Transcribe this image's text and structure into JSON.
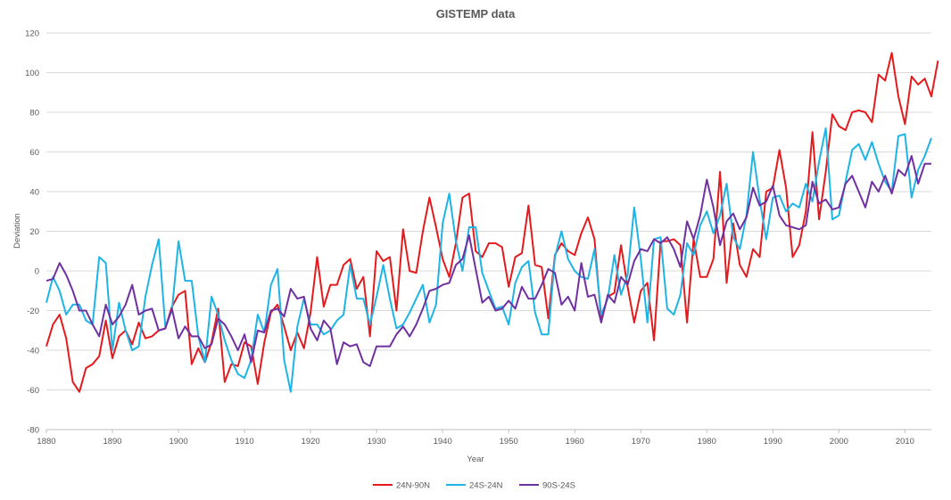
{
  "chart_data": {
    "type": "line",
    "title": "GISTEMP data",
    "xlabel": "Year",
    "ylabel": "Deviation",
    "xlim": [
      1880,
      2014
    ],
    "ylim": [
      -80,
      120
    ],
    "x_ticks": [
      1880,
      1890,
      1900,
      1910,
      1920,
      1930,
      1940,
      1950,
      1960,
      1970,
      1980,
      1990,
      2000,
      2010
    ],
    "y_ticks": [
      -80,
      -60,
      -40,
      -20,
      0,
      20,
      40,
      60,
      80,
      100,
      120
    ],
    "grid": true,
    "legend_position": "bottom",
    "x_start": 1880,
    "series": [
      {
        "name": "24N-90N",
        "color": "#e41a1c",
        "values": [
          -38,
          -27,
          -22,
          -34,
          -56,
          -61,
          -49,
          -47,
          -43,
          -25,
          -44,
          -33,
          -30,
          -37,
          -26,
          -34,
          -33,
          -30,
          -29,
          -18,
          -12,
          -10,
          -47,
          -39,
          -46,
          -36,
          -19,
          -56,
          -47,
          -48,
          -36,
          -38,
          -57,
          -36,
          -21,
          -17,
          -28,
          -40,
          -31,
          -39,
          -21,
          7,
          -18,
          -7,
          -7,
          3,
          6,
          -9,
          -3,
          -33,
          10,
          5,
          7,
          -20,
          21,
          0,
          -1,
          20,
          37,
          22,
          6,
          -3,
          14,
          37,
          39,
          10,
          7,
          14,
          14,
          12,
          -8,
          7,
          9,
          33,
          3,
          2,
          -24,
          8,
          14,
          10,
          8,
          19,
          27,
          16,
          -25,
          -13,
          -11,
          13,
          -8,
          -26,
          -10,
          -6,
          -35,
          15,
          15,
          16,
          13,
          -26,
          16,
          -3,
          -3,
          6,
          50,
          -6,
          24,
          3,
          -3,
          11,
          7,
          40,
          42,
          61,
          42,
          7,
          13,
          30,
          70,
          26,
          50,
          79,
          73,
          71,
          80,
          81,
          80,
          75,
          99,
          96,
          110,
          88,
          74,
          98,
          94,
          97,
          88,
          106
        ]
      },
      {
        "name": "24S-24N",
        "color": "#1eb4e6",
        "values": [
          -16,
          -3,
          -10,
          -22,
          -17,
          -17,
          -25,
          -27,
          7,
          4,
          -40,
          -16,
          -30,
          -40,
          -38,
          -13,
          3,
          16,
          -28,
          -20,
          15,
          -5,
          -5,
          -33,
          -46,
          -13,
          -22,
          -35,
          -45,
          -52,
          -54,
          -45,
          -22,
          -31,
          -7,
          1,
          -45,
          -61,
          -28,
          -14,
          -27,
          -27,
          -32,
          -30,
          -25,
          -22,
          3,
          -14,
          -14,
          -27,
          -13,
          3,
          -14,
          -29,
          -27,
          -21,
          -14,
          -7,
          -26,
          -17,
          24,
          39,
          15,
          0,
          22,
          22,
          -1,
          -10,
          -19,
          -18,
          -27,
          -6,
          2,
          5,
          -21,
          -32,
          -32,
          7,
          20,
          6,
          0,
          -3,
          -4,
          11,
          -22,
          -14,
          8,
          -12,
          -2,
          32,
          6,
          -26,
          16,
          17,
          -19,
          -22,
          -12,
          14,
          8,
          23,
          30,
          19,
          28,
          44,
          17,
          11,
          28,
          60,
          36,
          16,
          37,
          38,
          30,
          34,
          32,
          44,
          35,
          55,
          72,
          26,
          28,
          45,
          61,
          64,
          56,
          65,
          54,
          45,
          40,
          68,
          69,
          37,
          51,
          58,
          67
        ]
      },
      {
        "name": "90S-24S",
        "color": "#7030a0",
        "values": [
          -5,
          -4,
          4,
          -2,
          -10,
          -20,
          -20,
          -27,
          -33,
          -17,
          -27,
          -23,
          -17,
          -7,
          -22,
          -20,
          -19,
          -30,
          -29,
          -19,
          -34,
          -28,
          -33,
          -33,
          -39,
          -37,
          -24,
          -27,
          -33,
          -40,
          -32,
          -46,
          -30,
          -31,
          -20,
          -19,
          -23,
          -9,
          -14,
          -13,
          -29,
          -35,
          -25,
          -29,
          -47,
          -36,
          -38,
          -37,
          -46,
          -48,
          -38,
          -38,
          -38,
          -32,
          -28,
          -33,
          -27,
          -19,
          -10,
          -9,
          -7,
          -6,
          3,
          6,
          18,
          1,
          -16,
          -13,
          -20,
          -19,
          -15,
          -19,
          -8,
          -14,
          -14,
          -7,
          1,
          -1,
          -17,
          -13,
          -20,
          4,
          -13,
          -12,
          -26,
          -12,
          -16,
          -3,
          -7,
          5,
          11,
          10,
          16,
          14,
          17,
          11,
          2,
          25,
          16,
          28,
          46,
          32,
          13,
          25,
          29,
          21,
          27,
          42,
          33,
          35,
          43,
          28,
          23,
          22,
          21,
          23,
          45,
          34,
          36,
          31,
          32,
          44,
          48,
          40,
          32,
          45,
          40,
          48,
          39,
          51,
          48,
          58,
          44,
          54,
          54
        ]
      }
    ]
  }
}
